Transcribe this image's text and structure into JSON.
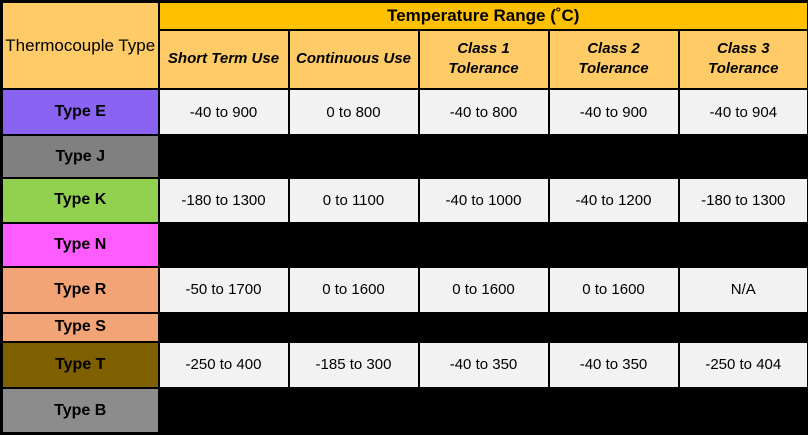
{
  "table": {
    "corner_header": "Thermocouple Type",
    "group_header": "Temperature Range (˚C)",
    "columns": [
      "Short Term Use",
      "Continuous Use",
      "Class 1 Tolerance",
      "Class 2 Tolerance",
      "Class 3 Tolerance"
    ],
    "rows": [
      {
        "type": "Type E",
        "color": "#8B63F2",
        "redacted": false,
        "values": [
          "-40 to 900",
          "0 to 800",
          "-40 to 800",
          "-40 to 900",
          "-40 to 904"
        ]
      },
      {
        "type": "Type J",
        "color": "#808080",
        "redacted": true,
        "values": []
      },
      {
        "type": "Type K",
        "color": "#92D050",
        "redacted": false,
        "values": [
          "-180 to 1300",
          "0 to 1100",
          "-40 to 1000",
          "-40 to 1200",
          "-180 to 1300"
        ]
      },
      {
        "type": "Type N",
        "color": "#FF5CFF",
        "redacted": true,
        "values": []
      },
      {
        "type": "Type R",
        "color": "#F2A477",
        "redacted": false,
        "values": [
          "-50 to 1700",
          "0 to 1600",
          "0 to 1600",
          "0 to 1600",
          "N/A"
        ]
      },
      {
        "type": "Type S",
        "color": "#F2A477",
        "redacted": true,
        "values": []
      },
      {
        "type": "Type T",
        "color": "#7F6000",
        "redacted": false,
        "values": [
          "-250 to 400",
          "-185 to 300",
          "-40 to 350",
          "-40 to 350",
          "-250 to 404"
        ]
      },
      {
        "type": "Type B",
        "color": "#8C8C8C",
        "redacted": true,
        "values": []
      }
    ],
    "colors": {
      "group_header_bg": "#FFC000",
      "subheader_bg": "#FFCB66",
      "corner_bg": "#FFCB66",
      "value_cell_bg": "#F2F2F2",
      "redacted_bg": "#000000",
      "border": "#000000"
    }
  }
}
